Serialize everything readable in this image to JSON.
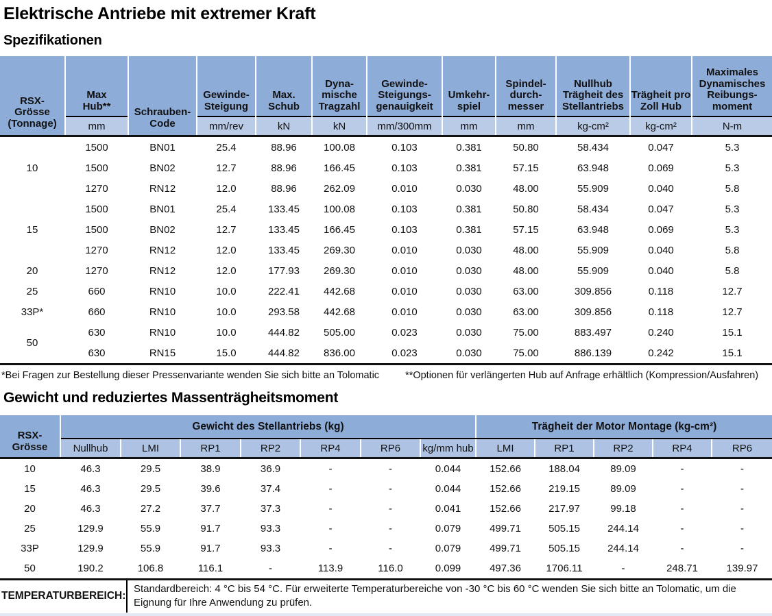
{
  "page": {
    "title": "Elektrische Antriebe mit extremer Kraft",
    "spec_section_title": "Spezifikationen",
    "weight_section_title": "Gewicht und reduziertes Massenträgheitsmoment"
  },
  "colors": {
    "header_blue": "#8EACD8",
    "unit_blue": "#B9CBE7",
    "subheader_blue": "#AEC3E4",
    "stripe_blue": "#E2E9F4",
    "rule_black": "#111111"
  },
  "spec_table": {
    "columns": [
      {
        "label": "RSX-\nGrösse\n(Tonnage)",
        "unit": null
      },
      {
        "label": "Max\nHub**",
        "unit": "mm"
      },
      {
        "label": "Schrauben-\nCode",
        "unit": null
      },
      {
        "label": "Gewinde-\nSteigung",
        "unit": "mm/rev"
      },
      {
        "label": "Max.\nSchub",
        "unit": "kN"
      },
      {
        "label": "Dyna-\nmische\nTragzahl",
        "unit": "kN"
      },
      {
        "label": "Gewinde-\nSteigungs-\ngenauigkeit",
        "unit": "mm/300mm"
      },
      {
        "label": "Umkehr-\nspiel",
        "unit": "mm"
      },
      {
        "label": "Spindel-\ndurch-\nmesser",
        "unit": "mm"
      },
      {
        "label": "Nullhub\nTrägheit des\nStellantriebs",
        "unit": "kg-cm²"
      },
      {
        "label": "Trägheit pro\nZoll Hub",
        "unit": "kg-cm²"
      },
      {
        "label": "Maximales\nDynamisches\nReibungs-\nmoment",
        "unit": "N-m"
      }
    ],
    "groups": [
      {
        "size": "10",
        "rows": [
          [
            "1500",
            "BN01",
            "25.4",
            "88.96",
            "100.08",
            "0.103",
            "0.381",
            "50.80",
            "58.434",
            "0.047",
            "5.3"
          ],
          [
            "1500",
            "BN02",
            "12.7",
            "88.96",
            "166.45",
            "0.103",
            "0.381",
            "57.15",
            "63.948",
            "0.069",
            "5.3"
          ],
          [
            "1270",
            "RN12",
            "12.0",
            "88.96",
            "262.09",
            "0.010",
            "0.030",
            "48.00",
            "55.909",
            "0.040",
            "5.8"
          ]
        ]
      },
      {
        "size": "15",
        "rows": [
          [
            "1500",
            "BN01",
            "25.4",
            "133.45",
            "100.08",
            "0.103",
            "0.381",
            "50.80",
            "58.434",
            "0.047",
            "5.3"
          ],
          [
            "1500",
            "BN02",
            "12.7",
            "133.45",
            "166.45",
            "0.103",
            "0.381",
            "57.15",
            "63.948",
            "0.069",
            "5.3"
          ],
          [
            "1270",
            "RN12",
            "12.0",
            "133.45",
            "269.30",
            "0.010",
            "0.030",
            "48.00",
            "55.909",
            "0.040",
            "5.8"
          ]
        ]
      },
      {
        "size": "20",
        "rows": [
          [
            "1270",
            "RN12",
            "12.0",
            "177.93",
            "269.30",
            "0.010",
            "0.030",
            "48.00",
            "55.909",
            "0.040",
            "5.8"
          ]
        ]
      },
      {
        "size": "25",
        "rows": [
          [
            "660",
            "RN10",
            "10.0",
            "222.41",
            "442.68",
            "0.010",
            "0.030",
            "63.00",
            "309.856",
            "0.118",
            "12.7"
          ]
        ]
      },
      {
        "size": "33P*",
        "rows": [
          [
            "660",
            "RN10",
            "10.0",
            "293.58",
            "442.68",
            "0.010",
            "0.030",
            "63.00",
            "309.856",
            "0.118",
            "12.7"
          ]
        ]
      },
      {
        "size": "50",
        "rows": [
          [
            "630",
            "RN10",
            "10.0",
            "444.82",
            "505.00",
            "0.023",
            "0.030",
            "75.00",
            "883.497",
            "0.240",
            "15.1"
          ],
          [
            "630",
            "RN15",
            "15.0",
            "444.82",
            "836.00",
            "0.023",
            "0.030",
            "75.00",
            "886.139",
            "0.242",
            "15.1"
          ]
        ]
      }
    ],
    "footnotes": [
      "*Bei Fragen zur Bestellung dieser Pressenvariante wenden Sie sich bitte an Tolomatic",
      "**Optionen für verlängerten Hub auf Anfrage erhältlich (Kompression/Ausfahren)"
    ]
  },
  "weight_table": {
    "row_header": "RSX-\nGrösse",
    "groups": [
      {
        "label": "Gewicht des Stellantriebs (kg)",
        "columns": [
          "Nullhub",
          "LMI",
          "RP1",
          "RP2",
          "RP4",
          "RP6",
          "kg/mm hub"
        ]
      },
      {
        "label": "Trägheit der Motor Montage (kg-cm²)",
        "columns": [
          "LMI",
          "RP1",
          "RP2",
          "RP4",
          "RP6"
        ]
      }
    ],
    "rows": [
      {
        "size": "10",
        "values": [
          "46.3",
          "29.5",
          "38.9",
          "36.9",
          "-",
          "-",
          "0.044",
          "152.66",
          "188.04",
          "89.09",
          "-",
          "-"
        ]
      },
      {
        "size": "15",
        "values": [
          "46.3",
          "29.5",
          "39.6",
          "37.4",
          "-",
          "-",
          "0.044",
          "152.66",
          "219.15",
          "89.09",
          "-",
          "-"
        ]
      },
      {
        "size": "20",
        "values": [
          "46.3",
          "27.2",
          "37.7",
          "37.3",
          "-",
          "-",
          "0.041",
          "152.66",
          "217.97",
          "99.18",
          "-",
          "-"
        ]
      },
      {
        "size": "25",
        "values": [
          "129.9",
          "55.9",
          "91.7",
          "93.3",
          "-",
          "-",
          "0.079",
          "499.71",
          "505.15",
          "244.14",
          "-",
          "-"
        ]
      },
      {
        "size": "33P",
        "values": [
          "129.9",
          "55.9",
          "91.7",
          "93.3",
          "-",
          "-",
          "0.079",
          "499.71",
          "505.15",
          "244.14",
          "-",
          "-"
        ]
      },
      {
        "size": "50",
        "values": [
          "190.2",
          "106.8",
          "116.1",
          "-",
          "113.9",
          "116.0",
          "0.099",
          "497.36",
          "1706.11",
          "-",
          "248.71",
          "139.97"
        ]
      }
    ]
  },
  "temperature": {
    "label": "TEMPERATURBEREICH:",
    "text": "Standardbereich: 4 °C bis 54 °C. Für erweiterte Temperaturbereiche von -30 °C bis 60 °C wenden Sie sich bitte an Tolomatic, um die Eignung für Ihre Anwendung zu prüfen."
  }
}
